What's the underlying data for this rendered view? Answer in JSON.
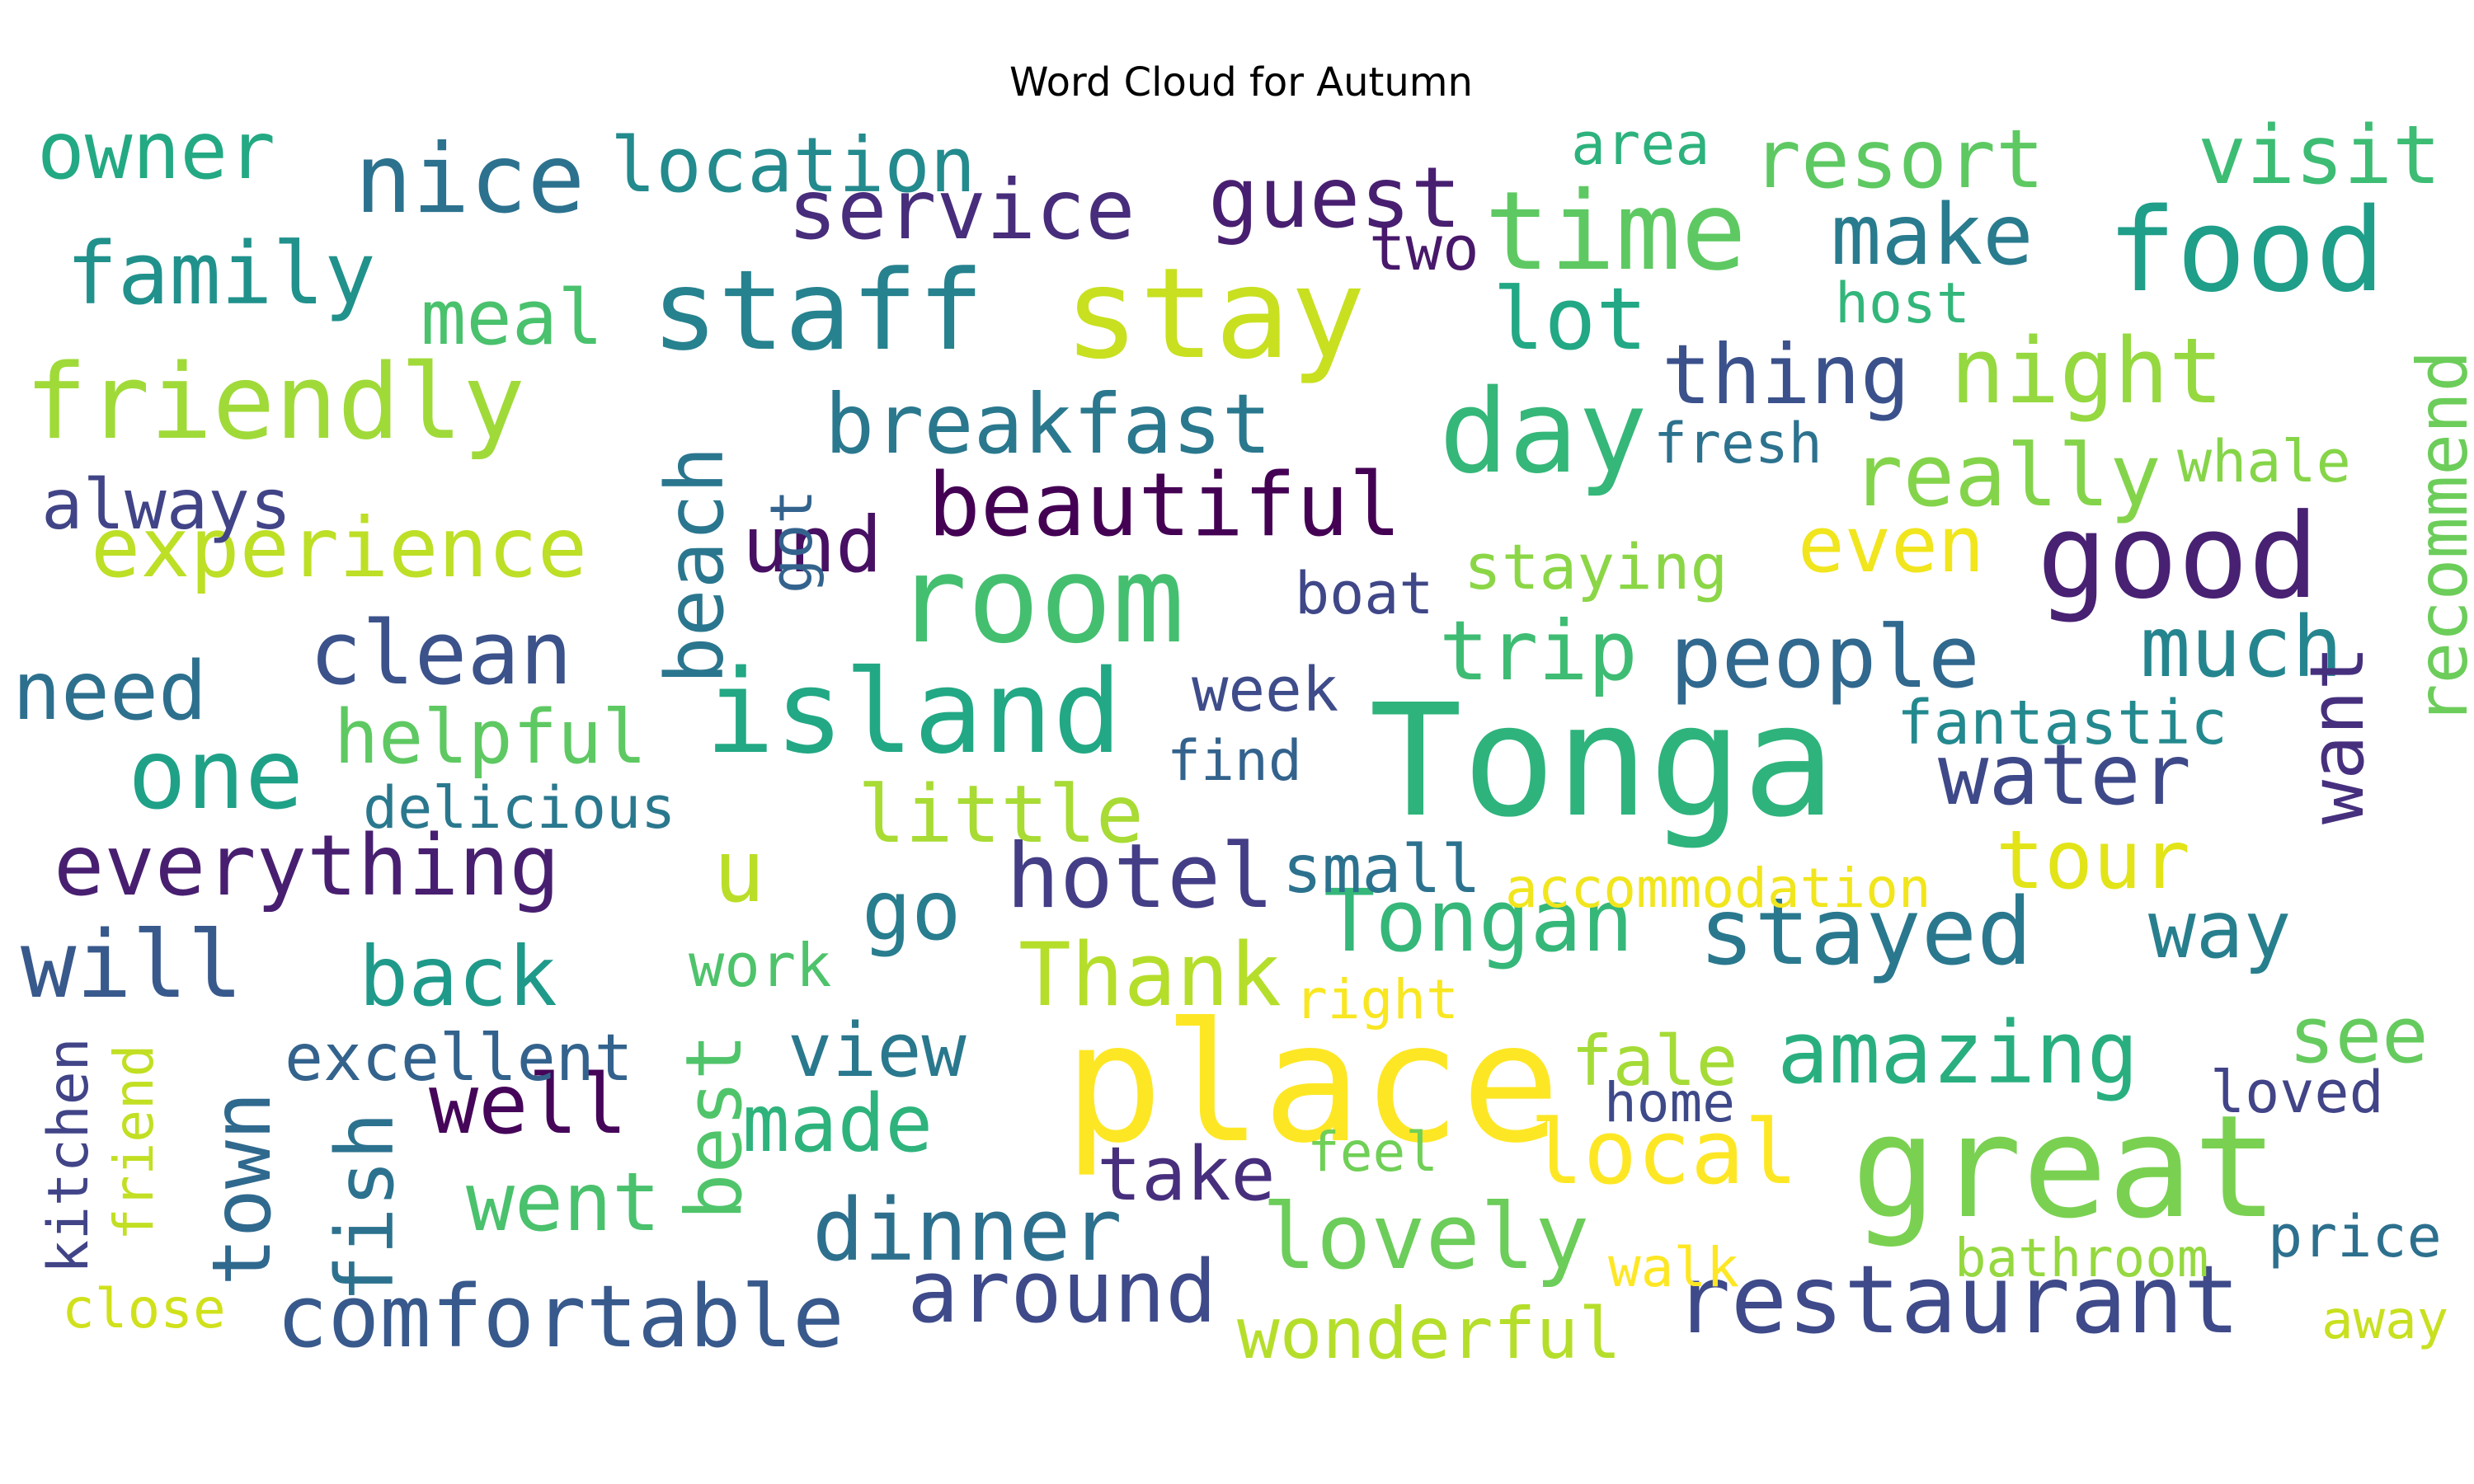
{
  "title": "Word Cloud for Autumn",
  "words": [
    {
      "text": "Tonga",
      "color": "#2eb37c"
    },
    {
      "text": "place",
      "color": "#fde725"
    },
    {
      "text": "great",
      "color": "#7ad151"
    },
    {
      "text": "stay",
      "color": "#c8e020"
    },
    {
      "text": "room",
      "color": "#44bf70"
    },
    {
      "text": "island",
      "color": "#22a884"
    },
    {
      "text": "staff",
      "color": "#26828e"
    },
    {
      "text": "good",
      "color": "#482173"
    },
    {
      "text": "food",
      "color": "#1f9e89"
    },
    {
      "text": "day",
      "color": "#35b779"
    },
    {
      "text": "time",
      "color": "#5ec962"
    },
    {
      "text": "restaurant",
      "color": "#3e4a89"
    },
    {
      "text": "friendly",
      "color": "#a0da39"
    },
    {
      "text": "beautiful",
      "color": "#440154"
    },
    {
      "text": "stayed",
      "color": "#2a788e"
    },
    {
      "text": "hotel",
      "color": "#433e85"
    },
    {
      "text": "one",
      "color": "#1fa187"
    },
    {
      "text": "comfortable",
      "color": "#38598c"
    },
    {
      "text": "local",
      "color": "#fde725"
    },
    {
      "text": "lovely",
      "color": "#6ccd5a"
    },
    {
      "text": "everything",
      "color": "#481f70"
    },
    {
      "text": "experience",
      "color": "#bddf26"
    },
    {
      "text": "will",
      "color": "#38598c"
    },
    {
      "text": "amazing",
      "color": "#29af7f"
    },
    {
      "text": "nice",
      "color": "#2c728e"
    },
    {
      "text": "breakfast",
      "color": "#2a788e"
    },
    {
      "text": "clean",
      "color": "#3b528b"
    },
    {
      "text": "around",
      "color": "#3e4a89"
    },
    {
      "text": "dinner",
      "color": "#2d708e"
    },
    {
      "text": "service",
      "color": "#472d7b"
    },
    {
      "text": "night",
      "color": "#95d840"
    },
    {
      "text": "people",
      "color": "#31688e"
    },
    {
      "text": "water",
      "color": "#3e4989"
    },
    {
      "text": "guest",
      "color": "#481f70"
    },
    {
      "text": "family",
      "color": "#21918c"
    },
    {
      "text": "town",
      "color": "#30698e"
    },
    {
      "text": "fish",
      "color": "#2c728e"
    },
    {
      "text": "beach",
      "color": "#2a768e"
    },
    {
      "text": "Tongan",
      "color": "#35b779"
    },
    {
      "text": "much",
      "color": "#25858e"
    },
    {
      "text": "really",
      "color": "#84d44b"
    },
    {
      "text": "thing",
      "color": "#3b518b"
    },
    {
      "text": "owner",
      "color": "#23a983"
    },
    {
      "text": "location",
      "color": "#238a8d"
    },
    {
      "text": "resort",
      "color": "#5ec962"
    },
    {
      "text": "visit",
      "color": "#3dbc74"
    },
    {
      "text": "make",
      "color": "#297b8e"
    },
    {
      "text": "back",
      "color": "#1f9a8a"
    },
    {
      "text": "Thank",
      "color": "#b5de2b"
    },
    {
      "text": "go",
      "color": "#287d8e"
    },
    {
      "text": "well",
      "color": "#450559"
    },
    {
      "text": "made",
      "color": "#2eb37c"
    },
    {
      "text": "went",
      "color": "#4ac16d"
    },
    {
      "text": "trip",
      "color": "#3fbc73"
    },
    {
      "text": "lot",
      "color": "#22a884"
    },
    {
      "text": "even",
      "color": "#f1e51d"
    },
    {
      "text": "need",
      "color": "#2d708e"
    },
    {
      "text": "tour",
      "color": "#e2e418"
    },
    {
      "text": "way",
      "color": "#277f8e"
    },
    {
      "text": "want",
      "color": "#46307e"
    },
    {
      "text": "recommend",
      "color": "#6ccd5a"
    },
    {
      "text": "helpful",
      "color": "#5ec962"
    },
    {
      "text": "meal",
      "color": "#4ac16d"
    },
    {
      "text": "und",
      "color": "#471063"
    },
    {
      "text": "little",
      "color": "#a8db34"
    },
    {
      "text": "u",
      "color": "#bade28"
    },
    {
      "text": "view",
      "color": "#2a788e"
    },
    {
      "text": "take",
      "color": "#472f7d"
    },
    {
      "text": "best",
      "color": "#50c46a"
    },
    {
      "text": "wonderful",
      "color": "#b5de2b"
    },
    {
      "text": "always",
      "color": "#414487"
    },
    {
      "text": "see",
      "color": "#65cb5e"
    },
    {
      "text": "excellent",
      "color": "#33638d"
    },
    {
      "text": "fale",
      "color": "#a5db36"
    },
    {
      "text": "fantastic",
      "color": "#23898e"
    },
    {
      "text": "small",
      "color": "#2c728e"
    },
    {
      "text": "staying",
      "color": "#8bd646"
    },
    {
      "text": "week",
      "color": "#3e4c8a"
    },
    {
      "text": "accommodation",
      "color": "#f1e51d"
    },
    {
      "text": "delicious",
      "color": "#2a788e"
    },
    {
      "text": "fresh",
      "color": "#2c728e"
    },
    {
      "text": "whale",
      "color": "#86d549"
    },
    {
      "text": "find",
      "color": "#33638d"
    },
    {
      "text": "boat",
      "color": "#3f4788"
    },
    {
      "text": "area",
      "color": "#2db27d"
    },
    {
      "text": "host",
      "color": "#32b67a"
    },
    {
      "text": "two",
      "color": "#48186a"
    },
    {
      "text": "got",
      "color": "#33638d"
    },
    {
      "text": "work",
      "color": "#4ec36b"
    },
    {
      "text": "right",
      "color": "#f8e621"
    },
    {
      "text": "feel",
      "color": "#70cf57"
    },
    {
      "text": "home",
      "color": "#3e4989"
    },
    {
      "text": "loved",
      "color": "#414487"
    },
    {
      "text": "walk",
      "color": "#fde725"
    },
    {
      "text": "price",
      "color": "#2d708e"
    },
    {
      "text": "bathroom",
      "color": "#95d840"
    },
    {
      "text": "kitchen",
      "color": "#414487"
    },
    {
      "text": "friend",
      "color": "#c2df23"
    },
    {
      "text": "close",
      "color": "#d0e11c"
    },
    {
      "text": "away",
      "color": "#c8e020"
    }
  ]
}
